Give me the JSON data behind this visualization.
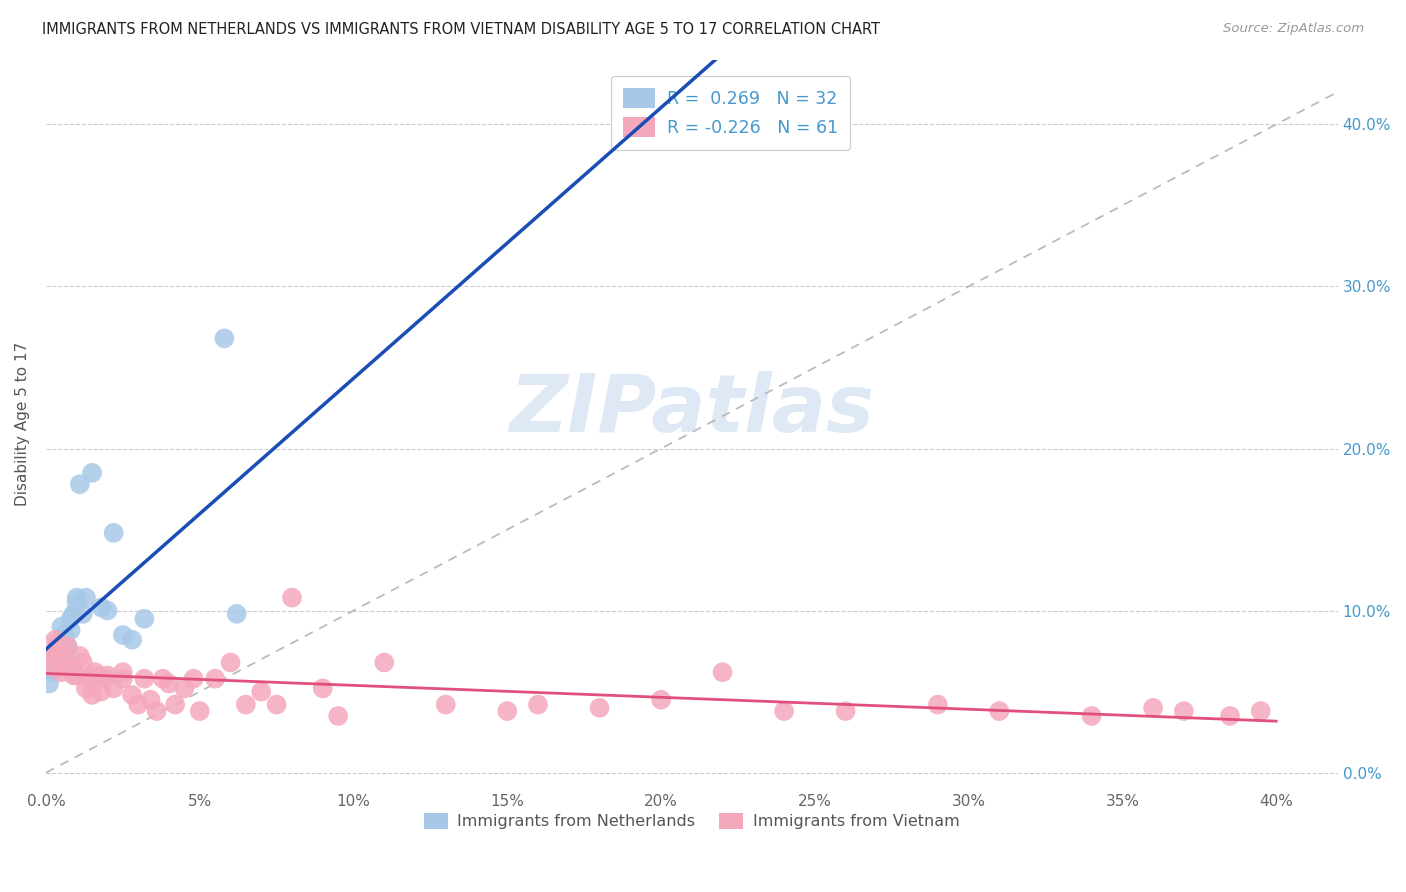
{
  "title": "IMMIGRANTS FROM NETHERLANDS VS IMMIGRANTS FROM VIETNAM DISABILITY AGE 5 TO 17 CORRELATION CHART",
  "source": "Source: ZipAtlas.com",
  "ylabel": "Disability Age 5 to 17",
  "xlim": [
    0.0,
    0.42
  ],
  "ylim": [
    -0.01,
    0.44
  ],
  "x_ticks": [
    0.0,
    0.05,
    0.1,
    0.15,
    0.2,
    0.25,
    0.3,
    0.35,
    0.4
  ],
  "y_ticks": [
    0.0,
    0.1,
    0.2,
    0.3,
    0.4
  ],
  "nl_color": "#a8c8e8",
  "vn_color": "#f4a8bc",
  "nl_line_color": "#1a4db5",
  "vn_line_color": "#e0507a",
  "dashed_line_color": "#bbbbbb",
  "R_nl": 0.269,
  "N_nl": 32,
  "R_vn": -0.226,
  "N_vn": 61,
  "watermark_text": "ZIPatlas",
  "nl_scatter_x": [
    0.001,
    0.002,
    0.002,
    0.003,
    0.003,
    0.003,
    0.004,
    0.004,
    0.005,
    0.005,
    0.005,
    0.006,
    0.006,
    0.007,
    0.007,
    0.008,
    0.008,
    0.009,
    0.01,
    0.01,
    0.011,
    0.012,
    0.013,
    0.015,
    0.018,
    0.02,
    0.022,
    0.025,
    0.028,
    0.032,
    0.058,
    0.062
  ],
  "nl_scatter_y": [
    0.055,
    0.062,
    0.068,
    0.072,
    0.075,
    0.068,
    0.08,
    0.075,
    0.09,
    0.082,
    0.078,
    0.085,
    0.068,
    0.078,
    0.07,
    0.095,
    0.088,
    0.098,
    0.105,
    0.108,
    0.178,
    0.098,
    0.108,
    0.185,
    0.102,
    0.1,
    0.148,
    0.085,
    0.082,
    0.095,
    0.268,
    0.098
  ],
  "vn_scatter_x": [
    0.001,
    0.002,
    0.003,
    0.003,
    0.004,
    0.004,
    0.005,
    0.005,
    0.006,
    0.007,
    0.008,
    0.009,
    0.01,
    0.011,
    0.012,
    0.013,
    0.014,
    0.015,
    0.016,
    0.017,
    0.018,
    0.019,
    0.02,
    0.022,
    0.025,
    0.025,
    0.028,
    0.03,
    0.032,
    0.034,
    0.036,
    0.038,
    0.04,
    0.042,
    0.045,
    0.048,
    0.05,
    0.055,
    0.06,
    0.065,
    0.07,
    0.075,
    0.08,
    0.09,
    0.095,
    0.11,
    0.13,
    0.15,
    0.16,
    0.18,
    0.2,
    0.22,
    0.24,
    0.26,
    0.29,
    0.31,
    0.34,
    0.36,
    0.37,
    0.385,
    0.395
  ],
  "vn_scatter_y": [
    0.07,
    0.065,
    0.082,
    0.075,
    0.08,
    0.072,
    0.075,
    0.062,
    0.065,
    0.078,
    0.065,
    0.06,
    0.06,
    0.072,
    0.068,
    0.052,
    0.058,
    0.048,
    0.062,
    0.06,
    0.05,
    0.058,
    0.06,
    0.052,
    0.058,
    0.062,
    0.048,
    0.042,
    0.058,
    0.045,
    0.038,
    0.058,
    0.055,
    0.042,
    0.052,
    0.058,
    0.038,
    0.058,
    0.068,
    0.042,
    0.05,
    0.042,
    0.108,
    0.052,
    0.035,
    0.068,
    0.042,
    0.038,
    0.042,
    0.04,
    0.045,
    0.062,
    0.038,
    0.038,
    0.042,
    0.038,
    0.035,
    0.04,
    0.038,
    0.035,
    0.038
  ],
  "nl_line_x": [
    0.0,
    0.3
  ],
  "vn_line_x": [
    0.0,
    0.4
  ],
  "tick_color": "#888888",
  "right_tick_color": "#4499cc"
}
